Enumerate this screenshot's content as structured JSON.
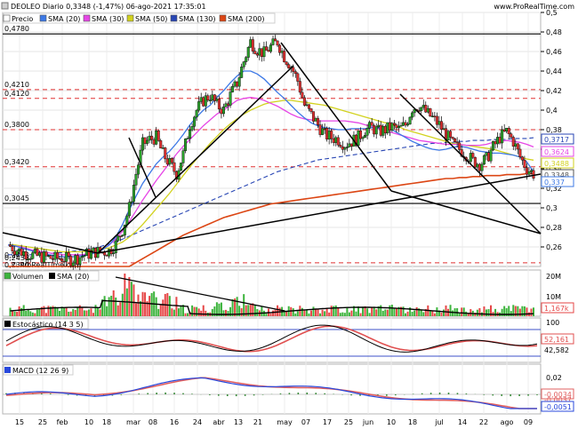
{
  "header": {
    "title": "DEOLEO Diario 0,3348 (-1,47%) 06-ago-2021 17:35:01",
    "site": "www.ProRealTime.com",
    "watermark": "© ProRealTime.com"
  },
  "colors": {
    "price_up": "#2aa12a",
    "price_down": "#e03030",
    "sma20": "#3c78e6",
    "sma30": "#e646e6",
    "sma50": "#d2d21e",
    "sma130": "#2846b4",
    "sma200": "#dc4614",
    "volume_up": "#3cb43c",
    "volume_down": "#e64646",
    "stoch_k": "#000000",
    "stoch_d": "#e05050",
    "macd": "#2848dc",
    "macd_signal": "#e06060",
    "resistance": "#e03030"
  },
  "legend": {
    "precio": "Precio",
    "sma20": "SMA (20)",
    "sma30": "SMA (30)",
    "sma50": "SMA (50)",
    "sma130": "SMA (130)",
    "sma200": "SMA (200)"
  },
  "price_levels": {
    "hline_black": [
      "0,4780",
      "0,3045"
    ],
    "hline_red": [
      "0,4210",
      "0,4120",
      "0,3800",
      "0,3420",
      "0,2438"
    ],
    "bottom_labels": [
      "0,2438",
      "0,2340"
    ]
  },
  "axis": {
    "price_ticks": [
      "0,5",
      "0,48",
      "0,46",
      "0,44",
      "0,42",
      "0,4",
      "0,38",
      "0,36",
      "0,34",
      "0,32",
      "0,3",
      "0,28",
      "0,26"
    ],
    "x_ticks": [
      "15",
      "25",
      "feb",
      "10",
      "18",
      "mar",
      "08",
      "16",
      "24",
      "abr",
      "13",
      "21",
      "may",
      "07",
      "17",
      "25",
      "jun",
      "10",
      "18",
      "jul",
      "14",
      "22",
      "ago",
      "09"
    ]
  },
  "last_values": {
    "sma130": "0,3717",
    "sma30": "0,3624",
    "sma50": "0,3488",
    "price": "0,3348",
    "sma20": "0,337"
  },
  "volume_panel": {
    "title": "Volumen",
    "sma_label": "SMA (20)",
    "ticks": [
      "20M",
      "10M"
    ],
    "last_value": "1,167k"
  },
  "stoch_panel": {
    "title": "Estocástico (14 3 5)",
    "ticks": [
      "100"
    ],
    "values": [
      "52,161",
      "42,582"
    ]
  },
  "macd_panel": {
    "title": "MACD (12 26 9)",
    "ticks": [
      "0,02",
      "-0,02"
    ],
    "values": [
      "-0,0034",
      "-0,0037",
      "-0,0051"
    ]
  },
  "chart_data": {
    "type": "candlestick",
    "title": "DEOLEO Diario",
    "x_labels": [
      "15",
      "25",
      "feb",
      "10",
      "18",
      "mar",
      "08",
      "16",
      "24",
      "abr",
      "13",
      "21",
      "may",
      "07",
      "17",
      "25",
      "jun",
      "10",
      "18",
      "jul",
      "14",
      "22",
      "ago",
      "09"
    ],
    "ylim": [
      0.24,
      0.5
    ],
    "close_path": [
      0.262,
      0.258,
      0.255,
      0.253,
      0.251,
      0.25,
      0.249,
      0.248,
      0.249,
      0.247,
      0.248,
      0.251,
      0.253,
      0.255,
      0.255,
      0.256,
      0.263,
      0.278,
      0.3,
      0.335,
      0.365,
      0.37,
      0.372,
      0.355,
      0.345,
      0.335,
      0.355,
      0.385,
      0.4,
      0.41,
      0.415,
      0.405,
      0.4,
      0.415,
      0.428,
      0.45,
      0.47,
      0.462,
      0.458,
      0.465,
      0.47,
      0.455,
      0.445,
      0.43,
      0.405,
      0.395,
      0.385,
      0.375,
      0.372,
      0.37,
      0.365,
      0.368,
      0.372,
      0.38,
      0.382,
      0.378,
      0.38,
      0.383,
      0.38,
      0.385,
      0.402,
      0.405,
      0.398,
      0.392,
      0.385,
      0.375,
      0.365,
      0.36,
      0.355,
      0.348,
      0.345,
      0.35,
      0.362,
      0.372,
      0.378,
      0.368,
      0.352,
      0.34,
      0.3348
    ],
    "sma20": [
      0.262,
      0.261,
      0.259,
      0.257,
      0.255,
      0.253,
      0.252,
      0.251,
      0.25,
      0.25,
      0.25,
      0.251,
      0.252,
      0.254,
      0.257,
      0.262,
      0.27,
      0.283,
      0.298,
      0.312,
      0.325,
      0.335,
      0.345,
      0.352,
      0.358,
      0.366,
      0.375,
      0.385,
      0.393,
      0.4,
      0.405,
      0.413,
      0.42,
      0.428,
      0.435,
      0.44,
      0.44,
      0.437,
      0.432,
      0.425,
      0.418,
      0.412,
      0.405,
      0.398,
      0.392,
      0.387,
      0.384,
      0.382,
      0.381,
      0.38,
      0.38,
      0.381,
      0.381,
      0.381,
      0.382,
      0.382,
      0.381,
      0.38,
      0.376,
      0.372,
      0.368,
      0.365,
      0.362,
      0.36,
      0.359,
      0.36,
      0.362,
      0.363,
      0.362,
      0.36,
      0.358,
      0.357,
      0.356,
      0.356,
      0.355,
      0.354,
      0.352,
      0.347,
      0.337
    ],
    "sma30": [
      0.262,
      0.261,
      0.26,
      0.258,
      0.256,
      0.255,
      0.254,
      0.253,
      0.252,
      0.252,
      0.252,
      0.252,
      0.253,
      0.255,
      0.258,
      0.262,
      0.268,
      0.276,
      0.286,
      0.297,
      0.308,
      0.318,
      0.328,
      0.337,
      0.346,
      0.355,
      0.363,
      0.37,
      0.377,
      0.384,
      0.39,
      0.396,
      0.4,
      0.405,
      0.41,
      0.412,
      0.413,
      0.412,
      0.41,
      0.407,
      0.404,
      0.4,
      0.396,
      0.393,
      0.391,
      0.39,
      0.389,
      0.389,
      0.389,
      0.389,
      0.389,
      0.388,
      0.387,
      0.385,
      0.383,
      0.381,
      0.379,
      0.377,
      0.375,
      0.373,
      0.371,
      0.369,
      0.368,
      0.367,
      0.366,
      0.365,
      0.365,
      0.365,
      0.364,
      0.364,
      0.364,
      0.365,
      0.367,
      0.368,
      0.369,
      0.368,
      0.367,
      0.365,
      0.3624
    ],
    "sma50": [
      0.262,
      0.262,
      0.261,
      0.26,
      0.259,
      0.258,
      0.257,
      0.256,
      0.255,
      0.255,
      0.255,
      0.255,
      0.256,
      0.257,
      0.258,
      0.259,
      0.262,
      0.265,
      0.27,
      0.276,
      0.283,
      0.291,
      0.299,
      0.307,
      0.315,
      0.324,
      0.333,
      0.342,
      0.35,
      0.358,
      0.366,
      0.373,
      0.38,
      0.386,
      0.391,
      0.396,
      0.4,
      0.403,
      0.406,
      0.408,
      0.409,
      0.41,
      0.41,
      0.409,
      0.408,
      0.407,
      0.406,
      0.405,
      0.403,
      0.401,
      0.399,
      0.397,
      0.395,
      0.393,
      0.391,
      0.389,
      0.387,
      0.385,
      0.383,
      0.38,
      0.378,
      0.376,
      0.374,
      0.372,
      0.37,
      0.368,
      0.366,
      0.365,
      0.364,
      0.363,
      0.362,
      0.361,
      0.36,
      0.358,
      0.356,
      0.354,
      0.352,
      0.35,
      0.3488
    ],
    "sma130": [
      0.252,
      0.252,
      0.252,
      0.252,
      0.252,
      0.253,
      0.253,
      0.254,
      0.254,
      0.255,
      0.256,
      0.257,
      0.258,
      0.259,
      0.261,
      0.263,
      0.265,
      0.268,
      0.271,
      0.274,
      0.277,
      0.28,
      0.283,
      0.286,
      0.289,
      0.292,
      0.295,
      0.298,
      0.301,
      0.304,
      0.307,
      0.31,
      0.313,
      0.316,
      0.319,
      0.322,
      0.325,
      0.328,
      0.331,
      0.334,
      0.337,
      0.339,
      0.341,
      0.343,
      0.345,
      0.347,
      0.349,
      0.35,
      0.351,
      0.352,
      0.353,
      0.354,
      0.355,
      0.356,
      0.357,
      0.358,
      0.359,
      0.36,
      0.361,
      0.362,
      0.363,
      0.364,
      0.365,
      0.366,
      0.366,
      0.367,
      0.367,
      0.368,
      0.368,
      0.369,
      0.369,
      0.369,
      0.37,
      0.37,
      0.37,
      0.371,
      0.371,
      0.371,
      0.3717
    ],
    "sma200": [
      0.2,
      0.201,
      0.203,
      0.205,
      0.207,
      0.209,
      0.211,
      0.213,
      0.215,
      0.217,
      0.219,
      0.221,
      0.223,
      0.225,
      0.227,
      0.23,
      0.233,
      0.236,
      0.24,
      0.244,
      0.248,
      0.252,
      0.256,
      0.26,
      0.264,
      0.268,
      0.272,
      0.275,
      0.278,
      0.281,
      0.284,
      0.287,
      0.29,
      0.292,
      0.294,
      0.296,
      0.298,
      0.3,
      0.302,
      0.304,
      0.305,
      0.306,
      0.307,
      0.308,
      0.309,
      0.31,
      0.311,
      0.312,
      0.313,
      0.314,
      0.315,
      0.316,
      0.317,
      0.318,
      0.319,
      0.32,
      0.321,
      0.322,
      0.323,
      0.324,
      0.325,
      0.326,
      0.327,
      0.328,
      0.329,
      0.33,
      0.33,
      0.331,
      0.331,
      0.332,
      0.332,
      0.333,
      0.333,
      0.333,
      0.334,
      0.334,
      0.334,
      0.335,
      0.335
    ]
  }
}
